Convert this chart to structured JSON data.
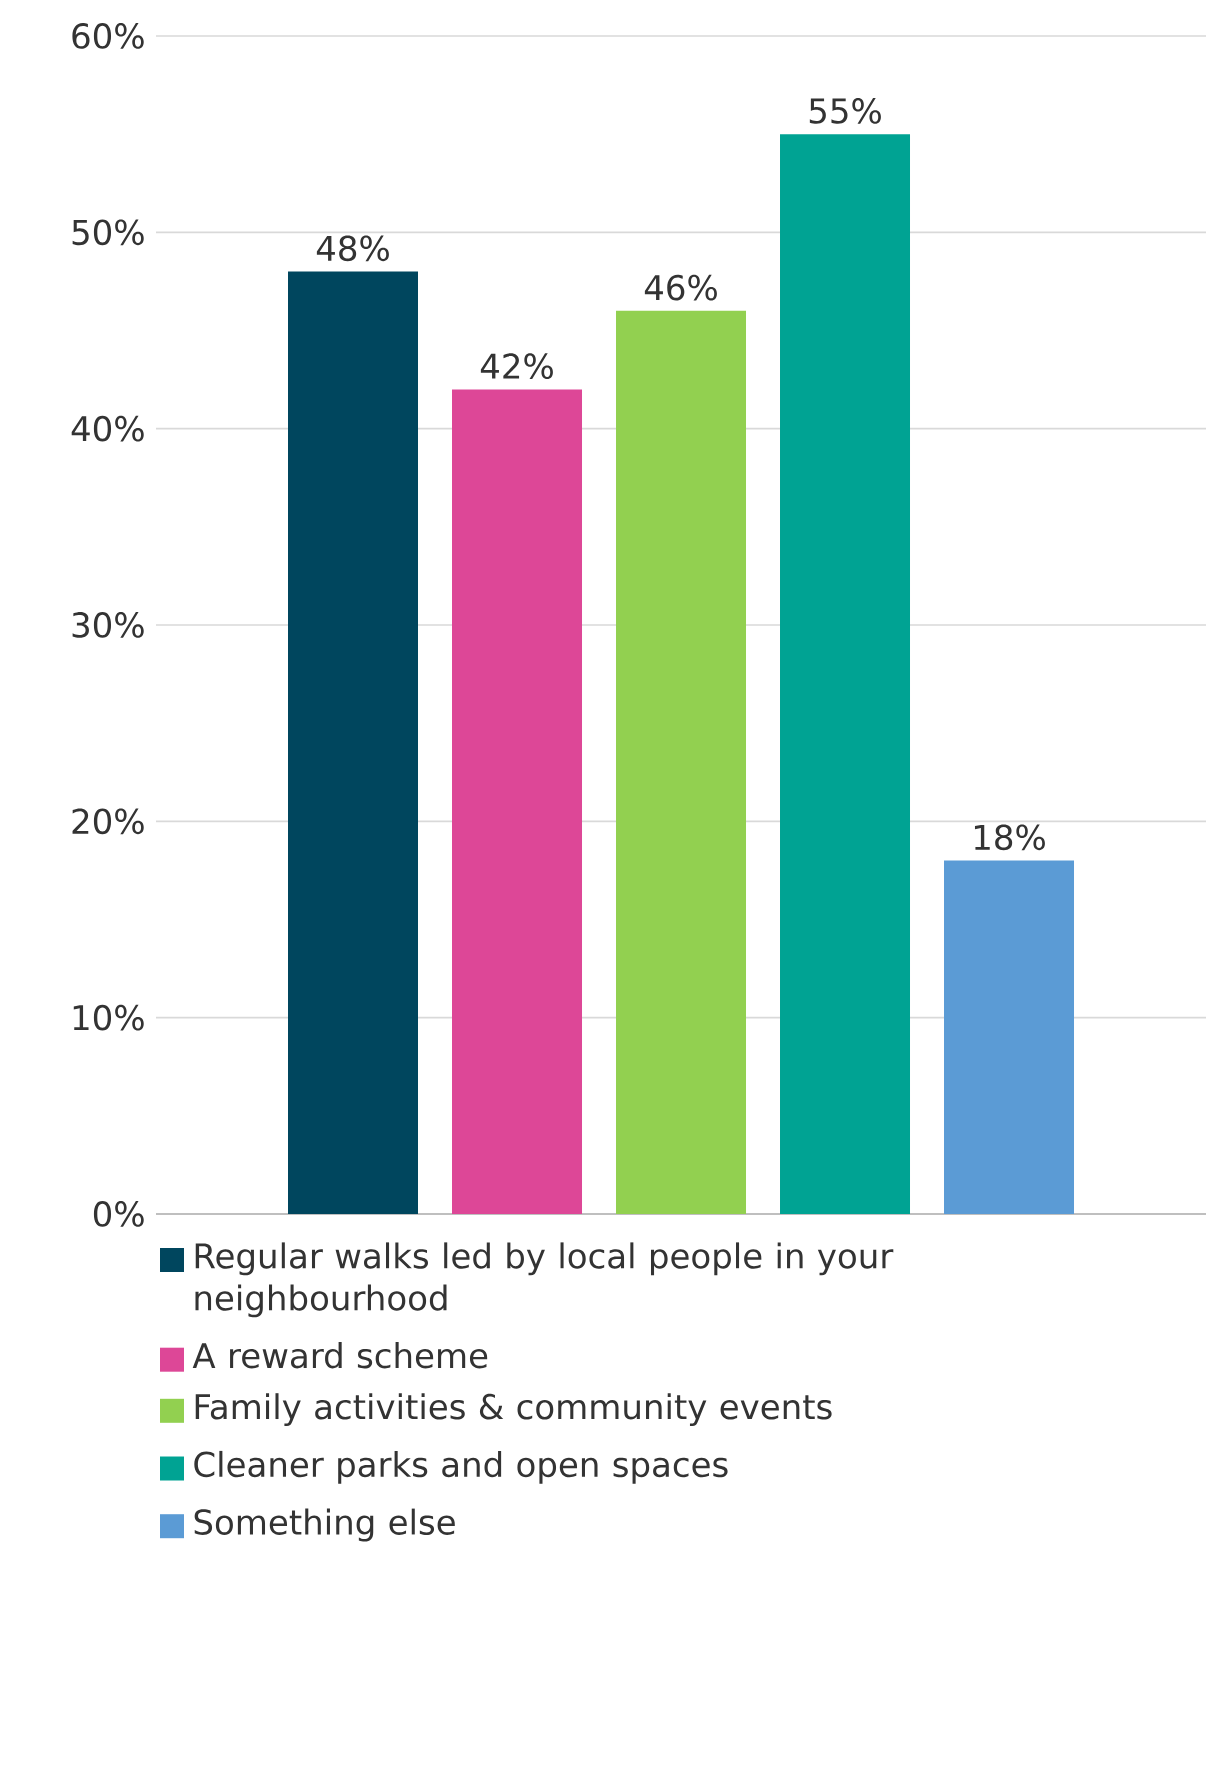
{
  "chart_data": {
    "type": "bar",
    "categories": [
      null
    ],
    "series": [
      {
        "name": "Regular walks led by local people in your neighbourhood",
        "color": "#00465e",
        "values": [
          48
        ],
        "value_labels": [
          "48%"
        ]
      },
      {
        "name": "A reward scheme",
        "color": "#dd4797",
        "values": [
          42
        ],
        "value_labels": [
          "42%"
        ]
      },
      {
        "name": "Family activities & community events",
        "color": "#92d050",
        "values": [
          46
        ],
        "value_labels": [
          "46%"
        ]
      },
      {
        "name": "Cleaner parks and open spaces",
        "color": "#00a393",
        "values": [
          55
        ],
        "value_labels": [
          "55%"
        ]
      },
      {
        "name": "Something else",
        "color": "#5b9bd5",
        "values": [
          18
        ],
        "value_labels": [
          "18%"
        ]
      }
    ],
    "ylim": [
      0,
      60
    ],
    "yticks": [
      {
        "value": 0,
        "label": "0%"
      },
      {
        "value": 10,
        "label": "10%"
      },
      {
        "value": 20,
        "label": "20%"
      },
      {
        "value": 30,
        "label": "30%"
      },
      {
        "value": 40,
        "label": "40%"
      },
      {
        "value": 50,
        "label": "50%"
      },
      {
        "value": 60,
        "label": "60%"
      }
    ],
    "grid": "y",
    "legend": "bottom"
  }
}
